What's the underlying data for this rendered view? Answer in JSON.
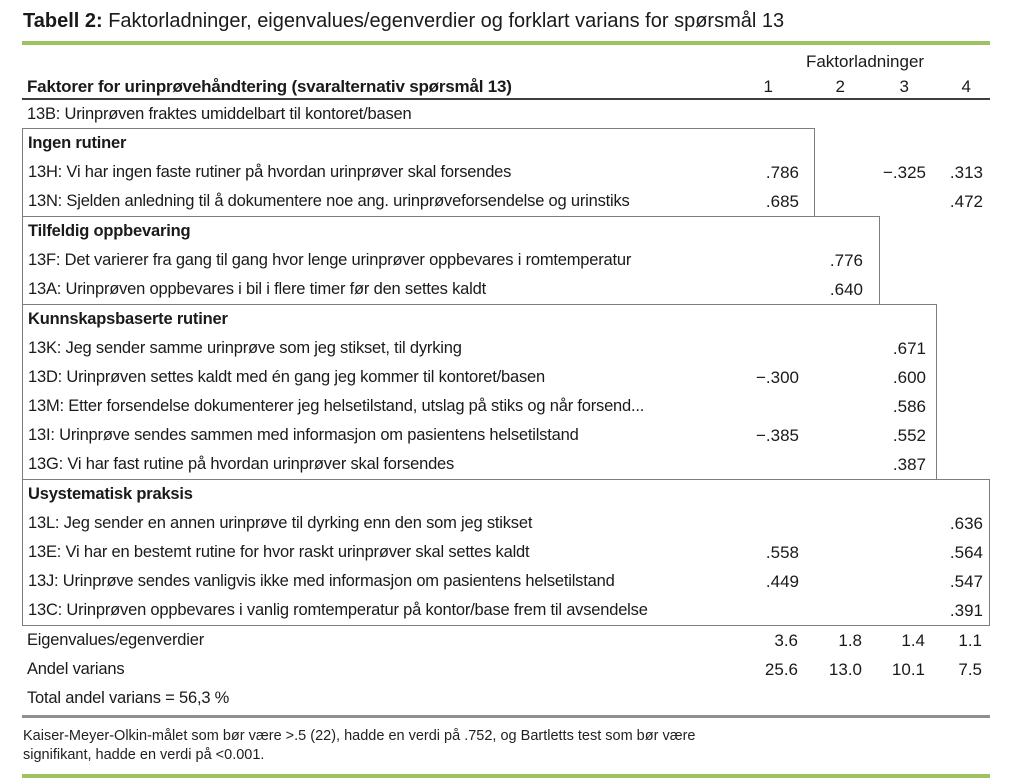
{
  "title": {
    "label": "Tabell 2:",
    "rest": " Faktorladninger, eigenvalues/egenverdier og forklart varians for spørsmål 13"
  },
  "colors": {
    "accent_green": "#9ec161",
    "divider_gray": "#8f8f8b",
    "box_border": "#7d7d7d",
    "header_rule": "#3f3f3f",
    "text": "#1a1a1a"
  },
  "table": {
    "group_header": "Faktorladninger",
    "label_header": "Faktorer for urinprøvehåndtering (svaralternativ spørsmål 13)",
    "factor_columns": [
      "1",
      "2",
      "3",
      "4"
    ],
    "intro_row": {
      "label": "13B: Urinprøven fraktes umiddelbart til kontoret/basen",
      "values": [
        "",
        "",
        "",
        ""
      ]
    },
    "sections": [
      {
        "name": "Ingen rutiner",
        "factor": 1,
        "rows": [
          {
            "label": "13H: Vi har ingen faste rutiner på hvordan urinprøver skal forsendes",
            "values": [
              ".786",
              "",
              "−.325",
              ".313"
            ]
          },
          {
            "label": "13N: Sjelden anledning til å dokumentere noe ang. urinprøveforsendelse og urinstiks",
            "values": [
              ".685",
              "",
              "",
              ".472"
            ]
          }
        ]
      },
      {
        "name": "Tilfeldig oppbevaring",
        "factor": 2,
        "rows": [
          {
            "label": "13F: Det varierer fra gang til gang hvor lenge urinprøver oppbevares i romtemperatur",
            "values": [
              "",
              ".776",
              "",
              ""
            ]
          },
          {
            "label": "13A: Urinprøven oppbevares i bil i flere timer før den settes kaldt",
            "values": [
              "",
              ".640",
              "",
              ""
            ]
          }
        ]
      },
      {
        "name": "Kunnskapsbaserte rutiner",
        "factor": 3,
        "rows": [
          {
            "label": "13K: Jeg sender samme urinprøve som jeg stikset, til dyrking",
            "values": [
              "",
              "",
              ".671",
              ""
            ]
          },
          {
            "label": "13D: Urinprøven settes kaldt med én gang jeg kommer til kontoret/basen",
            "values": [
              "−.300",
              "",
              ".600",
              ""
            ]
          },
          {
            "label": "13M: Etter forsendelse dokumenterer jeg helsetilstand, utslag på stiks og når forsend...",
            "values": [
              "",
              "",
              ".586",
              ""
            ]
          },
          {
            "label": "13I: Urinprøve sendes sammen med informasjon om pasientens helsetilstand",
            "values": [
              "−.385",
              "",
              ".552",
              ""
            ]
          },
          {
            "label": "13G: Vi har fast rutine på hvordan urinprøver skal forsendes",
            "values": [
              "",
              "",
              ".387",
              ""
            ]
          }
        ]
      },
      {
        "name": "Usystematisk praksis",
        "factor": 4,
        "rows": [
          {
            "label": "13L: Jeg sender en annen urinprøve til dyrking enn den som jeg stikset",
            "values": [
              "",
              "",
              "",
              ".636"
            ]
          },
          {
            "label": "13E: Vi har en bestemt rutine for hvor raskt urinprøver skal settes kaldt",
            "values": [
              ".558",
              "",
              "",
              ".564"
            ]
          },
          {
            "label": "13J: Urinprøve sendes vanligvis ikke med informasjon om pasientens helsetilstand",
            "values": [
              ".449",
              "",
              "",
              ".547"
            ]
          },
          {
            "label": "13C: Urinprøven oppbevares i vanlig romtemperatur på kontor/base frem til avsendelse",
            "values": [
              "",
              "",
              "",
              ".391"
            ]
          }
        ]
      }
    ],
    "footer_rows": [
      {
        "label": "Eigenvalues/egenverdier",
        "values": [
          "3.6",
          "1.8",
          "1.4",
          "1.1"
        ]
      },
      {
        "label": "Andel varians",
        "values": [
          "25.6",
          "13.0",
          "10.1",
          "7.5"
        ]
      },
      {
        "label": "Total andel varians = 56,3 %",
        "values": [
          "",
          "",
          "",
          ""
        ]
      }
    ]
  },
  "footnote": {
    "line1": "Kaiser-Meyer-Olkin-målet som bør være >.5 (22), hadde en verdi på .752, og Bartletts test som bør være",
    "line2": "signifikant, hadde en verdi på <0.001."
  }
}
